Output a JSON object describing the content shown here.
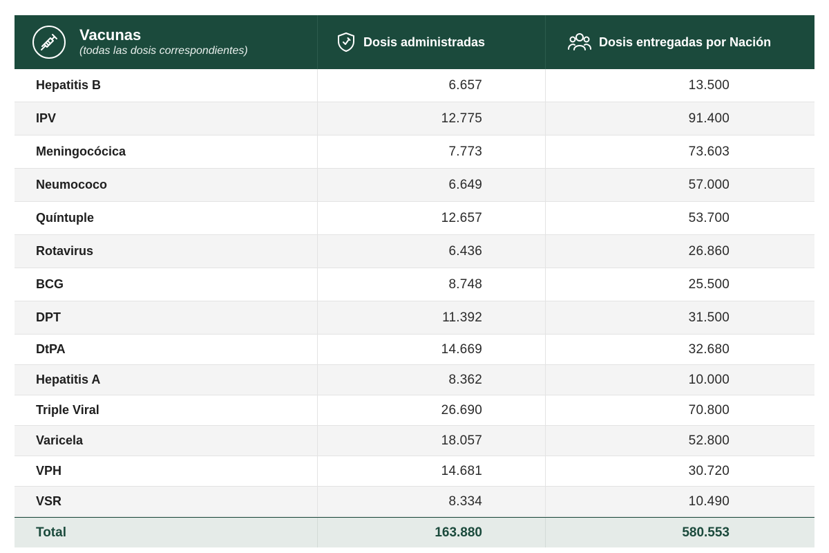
{
  "header": {
    "title": "Vacunas",
    "subtitle": "(todas las dosis correspondientes)",
    "col_administered": "Dosis administradas",
    "col_delivered": "Dosis entregadas por Nación",
    "icons": [
      "syringe-icon",
      "shield-icon",
      "people-icon"
    ]
  },
  "rows": [
    {
      "name": "Hepatitis B",
      "administered": "6.657",
      "delivered": "13.500"
    },
    {
      "name": "IPV",
      "administered": "12.775",
      "delivered": "91.400"
    },
    {
      "name": "Meningocócica",
      "administered": "7.773",
      "delivered": "73.603"
    },
    {
      "name": "Neumococo",
      "administered": "6.649",
      "delivered": "57.000"
    },
    {
      "name": "Quíntuple",
      "administered": "12.657",
      "delivered": "53.700"
    },
    {
      "name": "Rotavirus",
      "administered": "6.436",
      "delivered": "26.860"
    },
    {
      "name": "BCG",
      "administered": "8.748",
      "delivered": "25.500"
    },
    {
      "name": "DPT",
      "administered": "11.392",
      "delivered": "31.500"
    },
    {
      "name": "DtPA",
      "administered": "14.669",
      "delivered": "32.680"
    },
    {
      "name": "Hepatitis A",
      "administered": "8.362",
      "delivered": "10.000"
    },
    {
      "name": "Triple Viral",
      "administered": "26.690",
      "delivered": "70.800"
    },
    {
      "name": "Varicela",
      "administered": "18.057",
      "delivered": "52.800"
    },
    {
      "name": "VPH",
      "administered": "14.681",
      "delivered": "30.720"
    },
    {
      "name": "VSR",
      "administered": "8.334",
      "delivered": "10.490"
    }
  ],
  "total": {
    "label": "Total",
    "administered": "163.880",
    "delivered": "580.553"
  },
  "colors": {
    "header_bg": "#1b4a3c",
    "stripe": "#f4f4f4",
    "total_bg": "#e5ebe8",
    "total_text": "#1b4a3c"
  }
}
